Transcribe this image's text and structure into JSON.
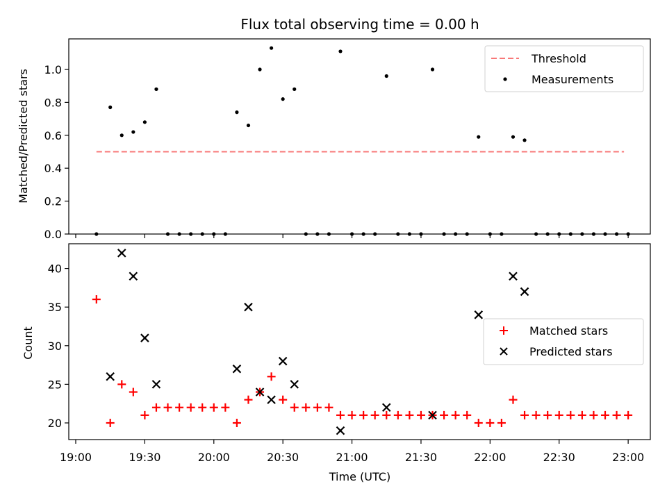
{
  "chart_data": [
    {
      "type": "scatter",
      "title": "Flux total observing time = 0.00 h",
      "ylabel": "Matched/Predicted stars",
      "xlabel": "",
      "xlim": [
        "19:00",
        "23:00"
      ],
      "ylim": [
        0,
        1.18
      ],
      "yticks": [
        "0.0",
        "0.2",
        "0.4",
        "0.6",
        "0.8",
        "1.0"
      ],
      "legend_position": "top-right",
      "threshold": {
        "name": "Threshold",
        "value": 0.5,
        "x_range": [
          "19:09",
          "23:00"
        ],
        "color": "#f87878",
        "style": "dashed"
      },
      "series": [
        {
          "name": "Measurements",
          "color": "#000000",
          "marker": "dot",
          "points": [
            [
              "19:09",
              0
            ],
            [
              "19:15",
              0.77
            ],
            [
              "19:20",
              0.6
            ],
            [
              "19:25",
              0.62
            ],
            [
              "19:30",
              0.68
            ],
            [
              "19:35",
              0.88
            ],
            [
              "19:40",
              0
            ],
            [
              "19:45",
              0
            ],
            [
              "19:50",
              0
            ],
            [
              "19:55",
              0
            ],
            [
              "20:00",
              0
            ],
            [
              "20:05",
              0
            ],
            [
              "20:10",
              0.74
            ],
            [
              "20:15",
              0.66
            ],
            [
              "20:20",
              1.0
            ],
            [
              "20:25",
              1.13
            ],
            [
              "20:30",
              0.82
            ],
            [
              "20:35",
              0.88
            ],
            [
              "20:40",
              0
            ],
            [
              "20:45",
              0
            ],
            [
              "20:50",
              0
            ],
            [
              "20:55",
              1.11
            ],
            [
              "21:00",
              0
            ],
            [
              "21:05",
              0
            ],
            [
              "21:10",
              0
            ],
            [
              "21:15",
              0.96
            ],
            [
              "21:20",
              0
            ],
            [
              "21:25",
              0
            ],
            [
              "21:30",
              0
            ],
            [
              "21:35",
              1.0
            ],
            [
              "21:40",
              0
            ],
            [
              "21:45",
              0
            ],
            [
              "21:50",
              0
            ],
            [
              "21:55",
              0.59
            ],
            [
              "22:00",
              0
            ],
            [
              "22:05",
              0
            ],
            [
              "22:10",
              0.59
            ],
            [
              "22:15",
              0.57
            ],
            [
              "22:20",
              0
            ],
            [
              "22:25",
              0
            ],
            [
              "22:30",
              0
            ],
            [
              "22:35",
              0
            ],
            [
              "22:40",
              0
            ],
            [
              "22:45",
              0
            ],
            [
              "22:50",
              0
            ],
            [
              "22:55",
              0
            ],
            [
              "23:00",
              0
            ]
          ]
        }
      ]
    },
    {
      "type": "scatter",
      "title": "",
      "ylabel": "Count",
      "xlabel": "Time (UTC)",
      "xlim": [
        "19:00",
        "23:00"
      ],
      "ylim": [
        18,
        43.5
      ],
      "yticks": [
        "20",
        "25",
        "30",
        "35",
        "40"
      ],
      "xticks": [
        "19:00",
        "19:30",
        "20:00",
        "20:30",
        "21:00",
        "21:30",
        "22:00",
        "22:30",
        "23:00"
      ],
      "legend_position": "right",
      "series": [
        {
          "name": "Matched stars",
          "color": "#ff0000",
          "marker": "plus",
          "points": [
            [
              "19:09",
              36
            ],
            [
              "19:15",
              20
            ],
            [
              "19:20",
              25
            ],
            [
              "19:25",
              24
            ],
            [
              "19:30",
              21
            ],
            [
              "19:35",
              22
            ],
            [
              "19:40",
              22
            ],
            [
              "19:45",
              22
            ],
            [
              "19:50",
              22
            ],
            [
              "19:55",
              22
            ],
            [
              "20:00",
              22
            ],
            [
              "20:05",
              22
            ],
            [
              "20:10",
              20
            ],
            [
              "20:15",
              23
            ],
            [
              "20:20",
              24
            ],
            [
              "20:25",
              26
            ],
            [
              "20:30",
              23
            ],
            [
              "20:35",
              22
            ],
            [
              "20:40",
              22
            ],
            [
              "20:45",
              22
            ],
            [
              "20:50",
              22
            ],
            [
              "20:55",
              21
            ],
            [
              "21:00",
              21
            ],
            [
              "21:05",
              21
            ],
            [
              "21:10",
              21
            ],
            [
              "21:15",
              21
            ],
            [
              "21:20",
              21
            ],
            [
              "21:25",
              21
            ],
            [
              "21:30",
              21
            ],
            [
              "21:35",
              21
            ],
            [
              "21:40",
              21
            ],
            [
              "21:45",
              21
            ],
            [
              "21:50",
              21
            ],
            [
              "21:55",
              20
            ],
            [
              "22:00",
              20
            ],
            [
              "22:05",
              20
            ],
            [
              "22:10",
              23
            ],
            [
              "22:15",
              21
            ],
            [
              "22:20",
              21
            ],
            [
              "22:25",
              21
            ],
            [
              "22:30",
              21
            ],
            [
              "22:35",
              21
            ],
            [
              "22:40",
              21
            ],
            [
              "22:45",
              21
            ],
            [
              "22:50",
              21
            ],
            [
              "22:55",
              21
            ],
            [
              "23:00",
              21
            ]
          ]
        },
        {
          "name": "Predicted stars",
          "color": "#000000",
          "marker": "x",
          "points": [
            [
              "19:15",
              26
            ],
            [
              "19:20",
              42
            ],
            [
              "19:25",
              39
            ],
            [
              "19:30",
              31
            ],
            [
              "19:35",
              25
            ],
            [
              "20:10",
              27
            ],
            [
              "20:15",
              35
            ],
            [
              "20:20",
              24
            ],
            [
              "20:25",
              23
            ],
            [
              "20:30",
              28
            ],
            [
              "20:35",
              25
            ],
            [
              "20:55",
              19
            ],
            [
              "21:15",
              22
            ],
            [
              "21:35",
              21
            ],
            [
              "21:55",
              34
            ],
            [
              "22:10",
              39
            ],
            [
              "22:15",
              37
            ]
          ]
        }
      ]
    }
  ]
}
